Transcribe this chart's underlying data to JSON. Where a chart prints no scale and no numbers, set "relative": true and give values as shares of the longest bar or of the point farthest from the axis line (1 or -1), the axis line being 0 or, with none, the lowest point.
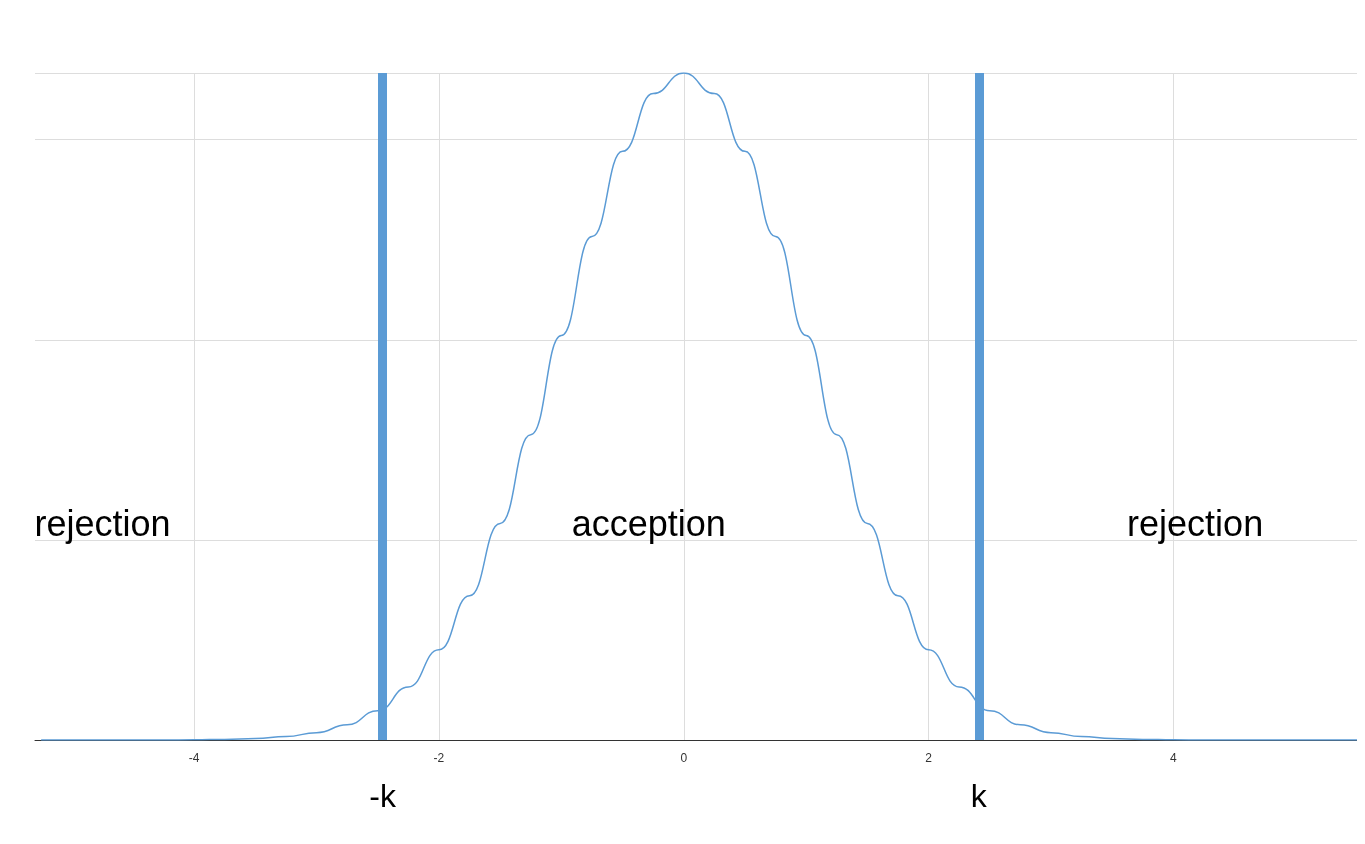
{
  "chart_data": {
    "type": "line",
    "relative": true,
    "color": "#5b9bd5",
    "x": [
      -5.25,
      -5,
      -4.75,
      -4.5,
      -4.25,
      -4,
      -3.75,
      -3.5,
      -3.25,
      -3,
      -2.75,
      -2.5,
      -2.25,
      -2,
      -1.75,
      -1.5,
      -1.25,
      -1,
      -0.75,
      -0.5,
      -0.25,
      0,
      0.25,
      0.5,
      0.75,
      1,
      1.25,
      1.5,
      1.75,
      2,
      2.25,
      2.5,
      2.75,
      3,
      3.25,
      3.5,
      3.75,
      4,
      4.25,
      4.5,
      4.75,
      5,
      5.25,
      5.5
    ],
    "values": [
      0,
      0,
      0,
      0,
      0,
      0.0003,
      0.0009,
      0.0022,
      0.0051,
      0.011,
      0.0228,
      0.0439,
      0.0796,
      0.1353,
      0.2163,
      0.3247,
      0.4578,
      0.6065,
      0.7548,
      0.8825,
      0.9692,
      1,
      0.9692,
      0.8825,
      0.7548,
      0.6065,
      0.4578,
      0.3247,
      0.2163,
      0.1353,
      0.0796,
      0.0439,
      0.0228,
      0.011,
      0.0051,
      0.0022,
      0.0009,
      0.0003,
      0,
      0,
      0,
      0,
      0,
      0
    ],
    "xlim": [
      -5.3,
      5.5
    ],
    "xticks": [
      -4,
      -2,
      0,
      2,
      4
    ],
    "grid": true,
    "tick_labels": "x",
    "marker": "none",
    "line_style": "solid",
    "ref_lines": [
      {
        "axis": "x",
        "value": -2.46,
        "label": "-k",
        "color": "#5b9bd5"
      },
      {
        "axis": "x",
        "value": 2.41,
        "label": "k",
        "color": "#5b9bd5"
      }
    ],
    "annotations": [
      "rejection",
      "acception",
      "rejection"
    ]
  }
}
